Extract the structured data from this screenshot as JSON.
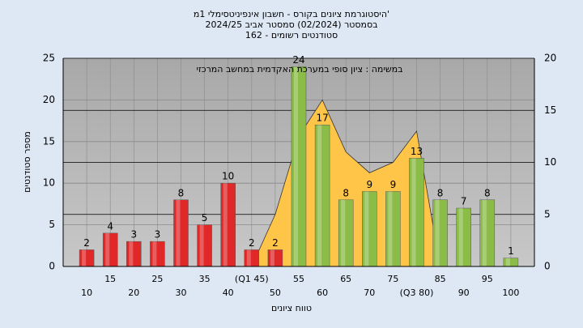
{
  "chart_data": {
    "type": "bar",
    "title": [
      "'היסטוגרמת ציונים בקורס - חשבון אינפיניטסימלי 1מ",
      "בסמסטר  (02/2024)  סמסטר אביב 2024/25",
      "סטודנטים רשומים - 162"
    ],
    "annotation": "במשימה : ציון סופי במערכת האקדמית במחשב המרכזי",
    "x_label": "טווח ציונים",
    "y_label": "מספר סטודנטים",
    "categories": [
      "10",
      "15",
      "20",
      "25",
      "30",
      "35",
      "40",
      "(Q1 45)",
      "50",
      "55",
      "60",
      "65",
      "70",
      "75",
      "(Q3 80)",
      "85",
      "90",
      "95",
      "100"
    ],
    "series": [
      {
        "type": "bar",
        "values": [
          2,
          4,
          3,
          3,
          8,
          5,
          10,
          2,
          2,
          24,
          17,
          8,
          9,
          9,
          13,
          8,
          7,
          8,
          1
        ],
        "colors": [
          "#e02828",
          "#e02828",
          "#e02828",
          "#e02828",
          "#e02828",
          "#e02828",
          "#e02828",
          "#e02828",
          "#e02828",
          "#8cbc48",
          "#8cbc48",
          "#8cbc48",
          "#8cbc48",
          "#8cbc48",
          "#8cbc48",
          "#8cbc48",
          "#8cbc48",
          "#8cbc48",
          "#8cbc48"
        ]
      },
      {
        "type": "area",
        "axis": "y2",
        "color": "#ffc548",
        "values": [
          null,
          null,
          null,
          null,
          null,
          null,
          null,
          0,
          5,
          12.5,
          16,
          11,
          9,
          10,
          13,
          0,
          null,
          null,
          null
        ]
      }
    ],
    "ylim": [
      0,
      25
    ],
    "yticks": [
      0,
      5,
      10,
      15,
      20,
      25
    ],
    "y2lim": [
      0,
      20
    ],
    "y2ticks": [
      0,
      5,
      10,
      15,
      20
    ],
    "grid": true
  }
}
